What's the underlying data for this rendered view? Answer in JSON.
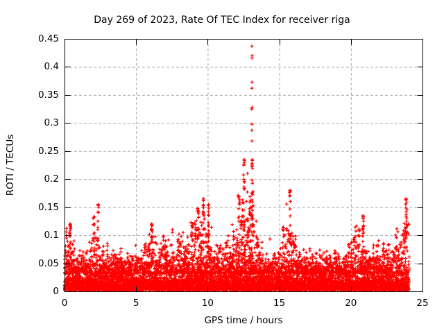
{
  "chart_data": {
    "type": "scatter",
    "title": "Day 269 of 2023, Rate Of TEC Index for receiver riga",
    "xlabel": "GPS time / hours",
    "ylabel": "ROTI / TECUs",
    "xlim": [
      0,
      25
    ],
    "ylim": [
      0,
      0.45
    ],
    "xtick_values": [
      0,
      5,
      10,
      15,
      20,
      25
    ],
    "xtick_labels": [
      "0",
      "5",
      "10",
      "15",
      "20",
      "25"
    ],
    "ytick_values": [
      0,
      0.05,
      0.1,
      0.15,
      0.2,
      0.25,
      0.3,
      0.35,
      0.4,
      0.45
    ],
    "ytick_labels": [
      "0",
      "0.05",
      "0.1",
      "0.15",
      "0.2",
      "0.25",
      "0.3",
      "0.35",
      "0.4",
      "0.45"
    ],
    "grid": {
      "show": true,
      "color": "#a8a8a8",
      "dash": [
        4,
        3
      ],
      "at_x": [
        5,
        10,
        15,
        20
      ],
      "at_y": [
        0.05,
        0.1,
        0.15,
        0.2,
        0.25,
        0.3,
        0.35,
        0.4
      ]
    },
    "legend": "none",
    "marker": {
      "shape": "plus",
      "color": "#ff0000",
      "half_size_px": 2.4,
      "stroke_px": 1.2
    },
    "axis_color": "#000000",
    "x_data_range": [
      0.0,
      24.05
    ],
    "density_band": {
      "y_offset": 0.002,
      "mean": 0.013,
      "clip": 0.062,
      "count": 6500,
      "description": "dense carpet of points 0-0.05 across all hours"
    },
    "envelope": {
      "start_hour": 0,
      "step_hours": 0.5,
      "max_values": [
        0.12,
        0.125,
        0.08,
        0.075,
        0.155,
        0.085,
        0.1,
        0.085,
        0.08,
        0.09,
        0.085,
        0.085,
        0.12,
        0.11,
        0.1,
        0.115,
        0.105,
        0.135,
        0.148,
        0.165,
        0.155,
        0.12,
        0.1,
        0.132,
        0.16,
        0.235,
        0.235,
        0.13,
        0.1,
        0.105,
        0.095,
        0.18,
        0.14,
        0.09,
        0.085,
        0.08,
        0.09,
        0.08,
        0.08,
        0.085,
        0.1,
        0.135,
        0.1,
        0.095,
        0.1,
        0.09,
        0.1,
        0.165
      ]
    },
    "spike_columns": [
      [
        0.4,
        0.12
      ],
      [
        2.35,
        0.155
      ],
      [
        6.1,
        0.12
      ],
      [
        9.7,
        0.165
      ],
      [
        10.05,
        0.155
      ],
      [
        12.55,
        0.235
      ],
      [
        13.1,
        0.235
      ],
      [
        15.75,
        0.18
      ],
      [
        20.85,
        0.135
      ],
      [
        23.85,
        0.165
      ]
    ],
    "outliers": [
      [
        13.08,
        0.437
      ],
      [
        13.1,
        0.42
      ],
      [
        13.09,
        0.416
      ],
      [
        13.09,
        0.373
      ],
      [
        13.08,
        0.362
      ],
      [
        13.1,
        0.328
      ],
      [
        13.07,
        0.325
      ],
      [
        13.09,
        0.298
      ],
      [
        13.08,
        0.287
      ],
      [
        13.09,
        0.268
      ]
    ],
    "seed": 1337
  }
}
